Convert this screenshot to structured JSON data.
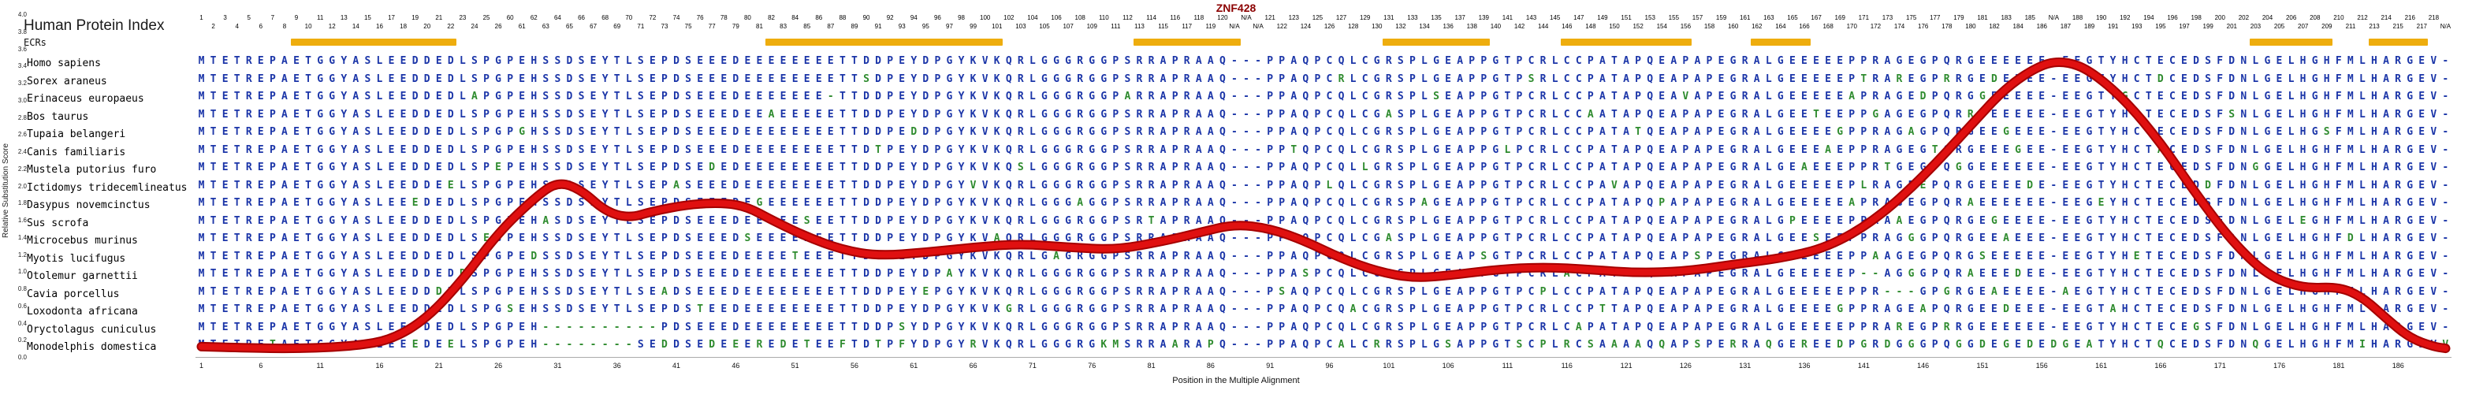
{
  "title": "ZNF428",
  "header": {
    "left_title": "Human Protein Index",
    "ecr_label": "ECRs"
  },
  "axes": {
    "y_label": "Relative Substitution Score",
    "x_label": "Position in the Multiple Alignment",
    "y_range": [
      0.0,
      4.0
    ],
    "y_ticks": [
      "4.0",
      "3.8",
      "3.6",
      "3.4",
      "3.2",
      "3.0",
      "2.8",
      "2.6",
      "2.4",
      "2.2",
      "2.0",
      "1.8",
      "1.6",
      "1.4",
      "1.2",
      "1.0",
      "0.8",
      "0.6",
      "0.4",
      "0.2",
      "0.0"
    ],
    "x_ticks": [
      1,
      6,
      11,
      16,
      21,
      26,
      31,
      36,
      41,
      46,
      51,
      56,
      61,
      66,
      71,
      76,
      81,
      86,
      91,
      96,
      101,
      106,
      111,
      116,
      121,
      126,
      131,
      136,
      141,
      146,
      151,
      156,
      161,
      166,
      171,
      176,
      181,
      186
    ]
  },
  "colors": {
    "sequence": "#1b35a8",
    "mismatch": "#2e8b2e",
    "ecr": "#eead0e",
    "curve": "#e01010",
    "curve_edge": "#a50000",
    "title": "#8b0000"
  },
  "ecrs": {
    "ranges": [
      [
        9,
        22
      ],
      [
        49,
        68
      ],
      [
        80,
        88
      ],
      [
        101,
        109
      ],
      [
        116,
        126
      ],
      [
        132,
        136
      ],
      [
        174,
        180
      ],
      [
        184,
        188
      ]
    ]
  },
  "alignment": {
    "num_columns": 190,
    "human_sequence": "MTETREPAETGGYASLEEDDEDLSPGPEHSSDSEYTLSEPDSEEEDEEEEEEEETTDDPEYDPGYKVKQRLGGGRGGPSRRAPRAAQ---PPAQPCQLCGRSPLGEAPPGTPCRLCCPATAPQEAPAPEGRALGEEEEEPPRAGEGPQRGEEEEEE-EEGTYHCTECEDSFDNLGELHGHFMLHARGEV-",
    "index_labels": [
      "1",
      "2",
      "3",
      "4",
      "5",
      "6",
      "7",
      "8",
      "9",
      "10",
      "11",
      "12",
      "13",
      "14",
      "15",
      "16",
      "17",
      "18",
      "19",
      "20",
      "21",
      "22",
      "23",
      "24",
      "25",
      "26",
      "60",
      "61",
      "62",
      "63",
      "64",
      "65",
      "66",
      "67",
      "68",
      "69",
      "70",
      "71",
      "72",
      "73",
      "74",
      "75",
      "76",
      "77",
      "78",
      "79",
      "80",
      "81",
      "82",
      "83",
      "84",
      "85",
      "86",
      "87",
      "88",
      "89",
      "90",
      "91",
      "92",
      "93",
      "94",
      "95",
      "96",
      "97",
      "98",
      "99",
      "100",
      "101",
      "102",
      "103",
      "104",
      "105",
      "106",
      "107",
      "108",
      "109",
      "110",
      "111",
      "112",
      "113",
      "114",
      "115",
      "116",
      "117",
      "118",
      "119",
      "120",
      "N/A",
      "N/A",
      "N/A",
      "121",
      "122",
      "123",
      "124",
      "125",
      "126",
      "127",
      "128",
      "129",
      "130",
      "131",
      "132",
      "133",
      "134",
      "135",
      "136",
      "137",
      "138",
      "139",
      "140",
      "141",
      "142",
      "143",
      "144",
      "145",
      "146",
      "147",
      "148",
      "149",
      "150",
      "151",
      "152",
      "153",
      "154",
      "155",
      "156",
      "157",
      "158",
      "159",
      "160",
      "161",
      "162",
      "163",
      "164",
      "165",
      "166",
      "167",
      "168",
      "169",
      "170",
      "171",
      "172",
      "173",
      "174",
      "175",
      "176",
      "177",
      "178",
      "179",
      "180",
      "181",
      "182",
      "183",
      "184",
      "185",
      "186",
      "N/A",
      "187",
      "188",
      "189",
      "190",
      "191",
      "192",
      "193",
      "194",
      "195",
      "196",
      "197",
      "198",
      "199",
      "200",
      "201",
      "202",
      "203",
      "204",
      "205",
      "206",
      "207",
      "208",
      "209",
      "210",
      "211",
      "212",
      "213",
      "214",
      "215",
      "216",
      "217",
      "218",
      "N/A"
    ],
    "species": [
      {
        "name": "Homo sapiens",
        "diffs": {}
      },
      {
        "name": "Sorex araneus",
        "diffs": {
          "45": "E",
          "57": "S",
          "97": "R",
          "113": "S",
          "141": "T",
          "144": "R",
          "148": "R",
          "152": "D",
          "166": "D"
        }
      },
      {
        "name": "Erinaceus europaeus",
        "diffs": {
          "24": "A",
          "54": "-",
          "55": "T",
          "79": "A",
          "105": "S",
          "126": "V",
          "140": "A",
          "146": "D",
          "151": "G",
          "163": "G"
        }
      },
      {
        "name": "Bos taurus",
        "diffs": {
          "31": "S",
          "49": "A",
          "101": "A",
          "118": "A",
          "137": "T",
          "142": "G",
          "150": "R",
          "172": "S"
        }
      },
      {
        "name": "Tupaia belangeri",
        "diffs": {
          "28": "G",
          "61": "D",
          "102": "S",
          "122": "T",
          "139": "G",
          "145": "A",
          "153": "G",
          "180": "S"
        }
      },
      {
        "name": "Canis familiaris",
        "diffs": {
          "33": "S",
          "58": "T",
          "93": "T",
          "111": "L",
          "138": "A",
          "147": "T",
          "154": "G",
          "166": "A"
        }
      },
      {
        "name": "Mustela putorius furo",
        "diffs": {
          "26": "E",
          "44": "D",
          "70": "S",
          "99": "L",
          "136": "A",
          "143": "T",
          "149": "G",
          "174": "G"
        }
      },
      {
        "name": "Ictidomys tridecemlineatus",
        "diffs": {
          "22": "E",
          "41": "A",
          "66": "V",
          "96": "L",
          "120": "V",
          "141": "L",
          "146": "E",
          "155": "D",
          "170": "D"
        }
      },
      {
        "name": "Dasypus novemcinctus",
        "diffs": {
          "19": "E",
          "48": "G",
          "75": "A",
          "104": "A",
          "124": "P",
          "140": "A",
          "150": "A",
          "161": "E"
        }
      },
      {
        "name": "Sus scrofa",
        "diffs": {
          "30": "A",
          "52": "S",
          "81": "T",
          "107": "A",
          "135": "P",
          "144": "A",
          "152": "G",
          "178": "E"
        }
      },
      {
        "name": "Microcebus murinus",
        "diffs": {
          "25": "E",
          "47": "S",
          "68": "A",
          "101": "A",
          "137": "S",
          "145": "G",
          "153": "A",
          "182": "D"
        }
      },
      {
        "name": "Myotis lucifugus",
        "diffs": {
          "29": "D",
          "51": "T",
          "73": "A",
          "109": "S",
          "127": "S",
          "142": "A",
          "151": "S",
          "164": "E"
        }
      },
      {
        "name": "Otolemur garnettii",
        "diffs": {
          "23": "D",
          "42": "S",
          "64": "A",
          "94": "S",
          "116": "A",
          "141": "-",
          "142": "-",
          "145": "G",
          "150": "A",
          "154": "D"
        }
      },
      {
        "name": "Cavia porcellus",
        "diffs": {
          "21": "D",
          "40": "A",
          "62": "E",
          "92": "S",
          "114": "P",
          "143": "-",
          "144": "-",
          "145": "-",
          "148": "G",
          "152": "A",
          "158": "A"
        }
      },
      {
        "name": "Loxodonta africana",
        "diffs": {
          "27": "S",
          "43": "T",
          "69": "G",
          "98": "A",
          "119": "T",
          "139": "G",
          "146": "A",
          "153": "D",
          "162": "A"
        }
      },
      {
        "name": "Oryctolagus cuniculus",
        "diffs": {
          "30": "-",
          "31": "-",
          "32": "-",
          "33": "-",
          "34": "-",
          "35": "-",
          "36": "-",
          "37": "-",
          "38": "-",
          "39": "-",
          "60": "S",
          "117": "A",
          "144": "R",
          "148": "R",
          "169": "G"
        }
      },
      {
        "name": "Monodelphis domestica",
        "diffs": {
          "7": "T",
          "15": "F",
          "19": "E",
          "22": "E",
          "23": "L",
          "30": "-",
          "31": "-",
          "32": "-",
          "33": "-",
          "34": "-",
          "35": "-",
          "36": "-",
          "37": "-",
          "40": "D",
          "44": "D",
          "46": "E",
          "48": "R",
          "50": "D",
          "52": "T",
          "55": "F",
          "58": "T",
          "60": "F",
          "66": "R",
          "77": "K",
          "78": "M",
          "83": "A",
          "85": "A",
          "86": "P",
          "94": "Q",
          "97": "A",
          "100": "R",
          "103": "P",
          "106": "S",
          "108": "P",
          "110": "G",
          "112": "S",
          "114": "P",
          "116": "R",
          "118": "S",
          "120": "A",
          "122": "A",
          "124": "Q",
          "127": "S",
          "130": "R",
          "133": "Q",
          "136": "R",
          "139": "D",
          "141": "G",
          "143": "D",
          "145": "G",
          "147": "P",
          "149": "G",
          "151": "D",
          "153": "G",
          "155": "D",
          "157": "D",
          "158": "G",
          "160": "A",
          "166": "Q",
          "174": "Q",
          "183": "I",
          "190": "V"
        }
      }
    ]
  },
  "chart_data": {
    "type": "line",
    "title": "ZNF428",
    "xlabel": "Position in the Multiple Alignment",
    "ylabel": "Relative Substitution Score",
    "xlim": [
      1,
      190
    ],
    "ylim": [
      0.0,
      4.0
    ],
    "grid": false,
    "legend": "none",
    "series": [
      {
        "name": "Relative Substitution Score",
        "x": [
          1,
          6,
          10,
          14,
          17,
          20,
          23,
          26,
          29,
          31,
          33,
          35,
          37,
          39,
          42,
          45,
          47,
          49,
          52,
          55,
          58,
          62,
          66,
          70,
          74,
          78,
          82,
          85,
          88,
          91,
          94,
          97,
          100,
          103,
          106,
          110,
          114,
          118,
          122,
          126,
          130,
          134,
          138,
          142,
          146,
          150,
          153,
          156,
          158,
          160,
          163,
          166,
          169,
          172,
          175,
          178,
          181,
          183,
          185,
          187,
          189,
          190
        ],
        "y": [
          0.12,
          0.1,
          0.1,
          0.13,
          0.2,
          0.45,
          0.9,
          1.45,
          1.85,
          2.05,
          1.95,
          1.7,
          1.62,
          1.7,
          1.78,
          1.8,
          1.75,
          1.6,
          1.4,
          1.25,
          1.18,
          1.22,
          1.28,
          1.32,
          1.28,
          1.25,
          1.35,
          1.45,
          1.55,
          1.5,
          1.35,
          1.15,
          1.0,
          0.92,
          0.95,
          1.02,
          1.05,
          1.02,
          0.98,
          1.0,
          1.08,
          1.15,
          1.28,
          1.6,
          2.1,
          2.7,
          3.15,
          3.42,
          3.45,
          3.35,
          3.0,
          2.5,
          1.9,
          1.35,
          0.95,
          0.8,
          0.82,
          0.7,
          0.45,
          0.22,
          0.12,
          0.1
        ]
      }
    ]
  }
}
